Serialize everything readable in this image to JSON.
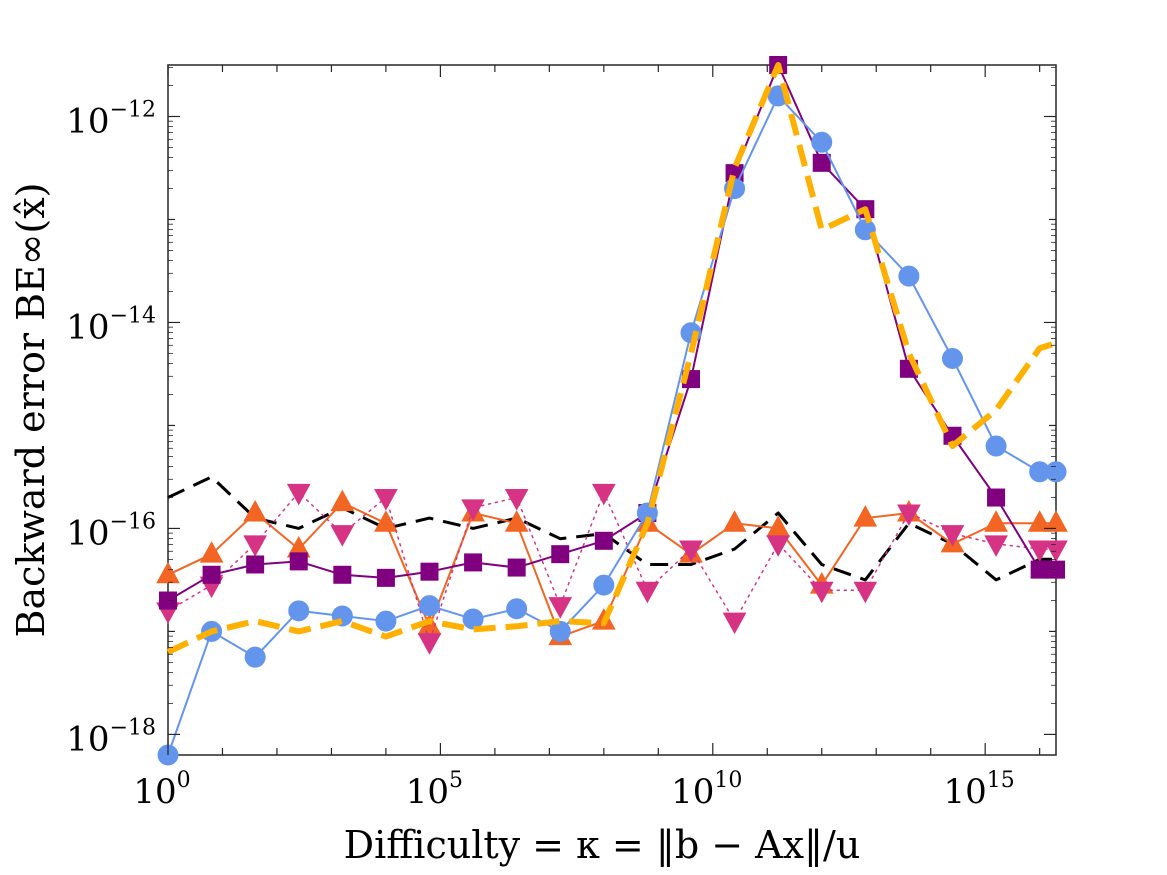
{
  "chart_data": {
    "type": "line",
    "title": "",
    "xlabel": "Difficulty = κ = ‖b − Ax‖/u",
    "ylabel": "Backward error BE∞(x̂)",
    "x_scale": "log",
    "y_scale": "log",
    "xlim_exp": [
      0,
      16.3
    ],
    "ylim_exp": [
      -18.2,
      -11.5
    ],
    "x_ticks": [
      {
        "base": "10",
        "exp": "0"
      },
      {
        "base": "10",
        "exp": "5"
      },
      {
        "base": "10",
        "exp": "10"
      },
      {
        "base": "10",
        "exp": "15"
      }
    ],
    "y_ticks": [
      {
        "base": "10",
        "exp": "−18"
      },
      {
        "base": "10",
        "exp": "−16"
      },
      {
        "base": "10",
        "exp": "−14"
      },
      {
        "base": "10",
        "exp": "−12"
      }
    ],
    "grid": false,
    "legend": "none",
    "series": [
      {
        "color": "#000000",
        "style": "dashed",
        "marker": "none",
        "width": 3,
        "x_exp": [
          0,
          0.8,
          1.6,
          2.4,
          3.2,
          4.0,
          4.8,
          5.6,
          6.4,
          7.2,
          8.0,
          8.8,
          9.6,
          10.4,
          11.2,
          12.0,
          12.8,
          13.6,
          14.4,
          15.2,
          16.0,
          16.3
        ],
        "y_exp": [
          -15.7,
          -15.5,
          -15.9,
          -16.0,
          -15.8,
          -16.0,
          -15.9,
          -16.0,
          -15.9,
          -16.1,
          -16.05,
          -16.35,
          -16.35,
          -16.2,
          -15.85,
          -16.35,
          -16.5,
          -15.95,
          -16.15,
          -16.5,
          -16.3,
          -16.3
        ]
      },
      {
        "color": "#f26522",
        "style": "solid",
        "marker": "triangle-up",
        "width": 2,
        "x_exp": [
          0,
          0.8,
          1.6,
          2.4,
          3.2,
          4.0,
          4.8,
          5.6,
          6.4,
          7.2,
          8.0,
          8.8,
          9.6,
          10.4,
          11.2,
          12.0,
          12.8,
          13.6,
          14.4,
          15.2,
          16.0,
          16.3
        ],
        "y_exp": [
          -16.45,
          -16.25,
          -15.85,
          -16.2,
          -15.75,
          -15.95,
          -16.95,
          -15.85,
          -15.95,
          -17.05,
          -16.9,
          -15.95,
          -16.25,
          -15.95,
          -16.0,
          -16.55,
          -15.9,
          -15.85,
          -16.15,
          -15.95,
          -15.95,
          -15.95
        ]
      },
      {
        "color": "#d63384",
        "style": "dotted",
        "marker": "triangle-down",
        "width": 1.5,
        "x_exp": [
          0,
          0.8,
          1.6,
          2.4,
          3.2,
          4.0,
          4.8,
          5.6,
          6.4,
          7.2,
          8.0,
          8.8,
          9.6,
          10.4,
          11.2,
          12.0,
          12.8,
          13.6,
          14.4,
          15.2,
          16.0,
          16.3
        ],
        "y_exp": [
          -16.8,
          -16.55,
          -16.15,
          -15.65,
          -16.05,
          -15.7,
          -17.1,
          -15.8,
          -15.7,
          -16.75,
          -15.65,
          -16.6,
          -16.2,
          -16.9,
          -16.15,
          -16.6,
          -16.6,
          -15.85,
          -16.05,
          -16.15,
          -16.2,
          -16.2
        ]
      },
      {
        "color": "#800080",
        "style": "solid",
        "marker": "square",
        "width": 2,
        "x_exp": [
          0,
          0.8,
          1.6,
          2.4,
          3.2,
          4.0,
          4.8,
          5.6,
          6.4,
          7.2,
          8.0,
          8.8,
          9.6,
          10.4,
          11.2,
          12.0,
          12.8,
          13.6,
          14.4,
          15.2,
          16.0,
          16.3
        ],
        "y_exp": [
          -16.7,
          -16.45,
          -16.35,
          -16.32,
          -16.45,
          -16.48,
          -16.42,
          -16.33,
          -16.38,
          -16.25,
          -16.12,
          -15.85,
          -14.55,
          -12.55,
          -11.5,
          -12.45,
          -12.9,
          -14.45,
          -15.1,
          -15.7,
          -16.4,
          -16.4
        ]
      },
      {
        "color": "#6495ed",
        "style": "solid",
        "marker": "circle",
        "width": 2,
        "x_exp": [
          0,
          0.8,
          1.6,
          2.4,
          3.2,
          4.0,
          4.8,
          5.6,
          6.4,
          7.2,
          8.0,
          8.8,
          9.6,
          10.4,
          11.2,
          12.0,
          12.8,
          13.6,
          14.4,
          15.2,
          16.0,
          16.3
        ],
        "y_exp": [
          -18.2,
          -17.0,
          -17.25,
          -16.8,
          -16.85,
          -16.9,
          -16.75,
          -16.88,
          -16.78,
          -17.0,
          -16.55,
          -15.85,
          -14.1,
          -12.7,
          -11.8,
          -12.25,
          -13.1,
          -13.55,
          -14.35,
          -15.2,
          -15.45,
          -15.45
        ]
      },
      {
        "color": "#ffb000",
        "style": "dashed",
        "marker": "none",
        "width": 6,
        "x_exp": [
          0,
          0.8,
          1.6,
          2.4,
          3.2,
          4.0,
          4.8,
          5.6,
          6.4,
          7.2,
          8.0,
          8.8,
          9.6,
          10.4,
          11.2,
          12.0,
          12.8,
          13.6,
          14.4,
          15.2,
          16.0,
          16.3
        ],
        "y_exp": [
          -17.2,
          -17.0,
          -16.9,
          -17.0,
          -16.9,
          -17.05,
          -16.9,
          -16.98,
          -16.95,
          -16.9,
          -16.92,
          -15.95,
          -14.3,
          -12.5,
          -11.5,
          -13.1,
          -12.9,
          -14.3,
          -15.2,
          -14.85,
          -14.25,
          -14.2
        ]
      }
    ]
  }
}
